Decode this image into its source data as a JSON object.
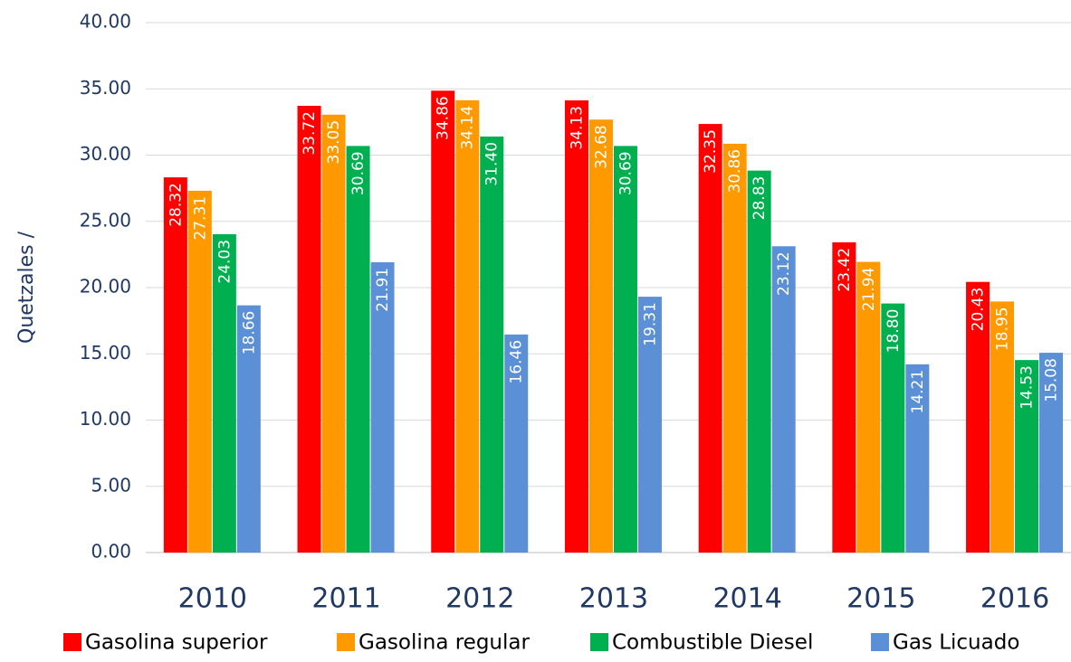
{
  "chart_data": {
    "type": "bar",
    "y_axis_label": "Quetzales /",
    "categories": [
      "2010",
      "2011",
      "2012",
      "2013",
      "2014",
      "2015",
      "2016"
    ],
    "series": [
      {
        "name": "Gasolina superior",
        "color": "#ff0000",
        "values": [
          28.32,
          33.72,
          34.86,
          34.13,
          32.35,
          23.42,
          20.43
        ],
        "value_labels": [
          "28.32",
          "33.72",
          "34.86",
          "34.13",
          "32.35",
          "23.42",
          "20.43"
        ]
      },
      {
        "name": "Gasolina regular",
        "color": "#ff9900",
        "values": [
          27.31,
          33.05,
          34.14,
          32.68,
          30.86,
          21.94,
          18.95
        ],
        "value_labels": [
          "27.31",
          "33.05",
          "34.14",
          "32.68",
          "30.86",
          "21.94",
          "18.95"
        ]
      },
      {
        "name": "Combustible Diesel",
        "color": "#00b050",
        "values": [
          24.03,
          30.69,
          31.4,
          30.69,
          28.83,
          18.8,
          14.53
        ],
        "value_labels": [
          "24.03",
          "30.69",
          "31.40",
          "30.69",
          "28.83",
          "18.80",
          "14.53"
        ]
      },
      {
        "name": "Gas Licuado",
        "color": "#5b8fd6",
        "values": [
          18.66,
          21.91,
          16.46,
          19.31,
          23.12,
          14.21,
          15.08
        ],
        "value_labels": [
          "18.66",
          "21.91",
          "16.46",
          "19.31",
          "23.12",
          "14.21",
          "15.08"
        ]
      }
    ],
    "ylim": [
      0,
      40
    ],
    "yticks": [
      {
        "value": 0,
        "label": "0.00"
      },
      {
        "value": 5,
        "label": "5.00"
      },
      {
        "value": 10,
        "label": "10.00"
      },
      {
        "value": 15,
        "label": "15.00"
      },
      {
        "value": 20,
        "label": "20.00"
      },
      {
        "value": 25,
        "label": "25.00"
      },
      {
        "value": 30,
        "label": "30.00"
      },
      {
        "value": 35,
        "label": "35.00"
      },
      {
        "value": 40,
        "label": "40.00"
      }
    ],
    "grid": true,
    "legend": "bottom"
  }
}
